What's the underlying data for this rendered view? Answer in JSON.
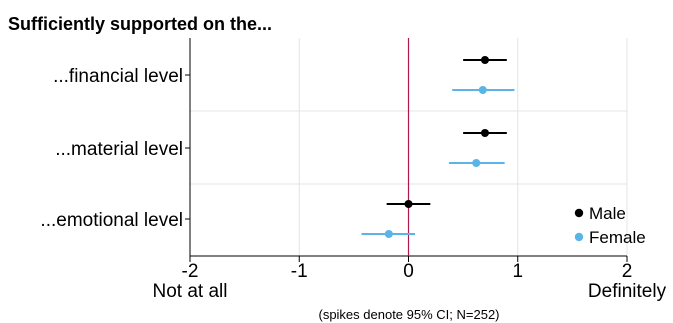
{
  "chart_data": {
    "type": "scatter",
    "subtype": "coefficient-plot-with-confidence-intervals",
    "orientation": "horizontal",
    "title": "Sufficiently supported on the...",
    "categories": [
      "...financial level",
      "...material level",
      "...emotional level"
    ],
    "series": [
      {
        "name": "Male",
        "color": "#000000",
        "marker": "circle",
        "values": [
          0.7,
          0.7,
          0.0
        ],
        "ci_low": [
          0.5,
          0.5,
          -0.2
        ],
        "ci_high": [
          0.9,
          0.9,
          0.2
        ]
      },
      {
        "name": "Female",
        "color": "#5ab4e5",
        "marker": "circle",
        "values": [
          0.68,
          0.62,
          -0.18
        ],
        "ci_low": [
          0.4,
          0.37,
          -0.43
        ],
        "ci_high": [
          0.97,
          0.88,
          0.06
        ]
      }
    ],
    "xlim": [
      -2,
      2
    ],
    "xticks": [
      -2,
      -1,
      0,
      1,
      2
    ],
    "xtick_labels": [
      "-2",
      "-1",
      "0",
      "1",
      "2"
    ],
    "x_anchor_labels": {
      "low": "Not at all",
      "high": "Definitely"
    },
    "reference_line": {
      "x": 0,
      "color": "#b0184c"
    },
    "grid": true,
    "legend": {
      "position": "bottom-right",
      "entries": [
        "Male",
        "Female"
      ]
    },
    "note": "(spikes denote 95% CI; N=252)"
  }
}
